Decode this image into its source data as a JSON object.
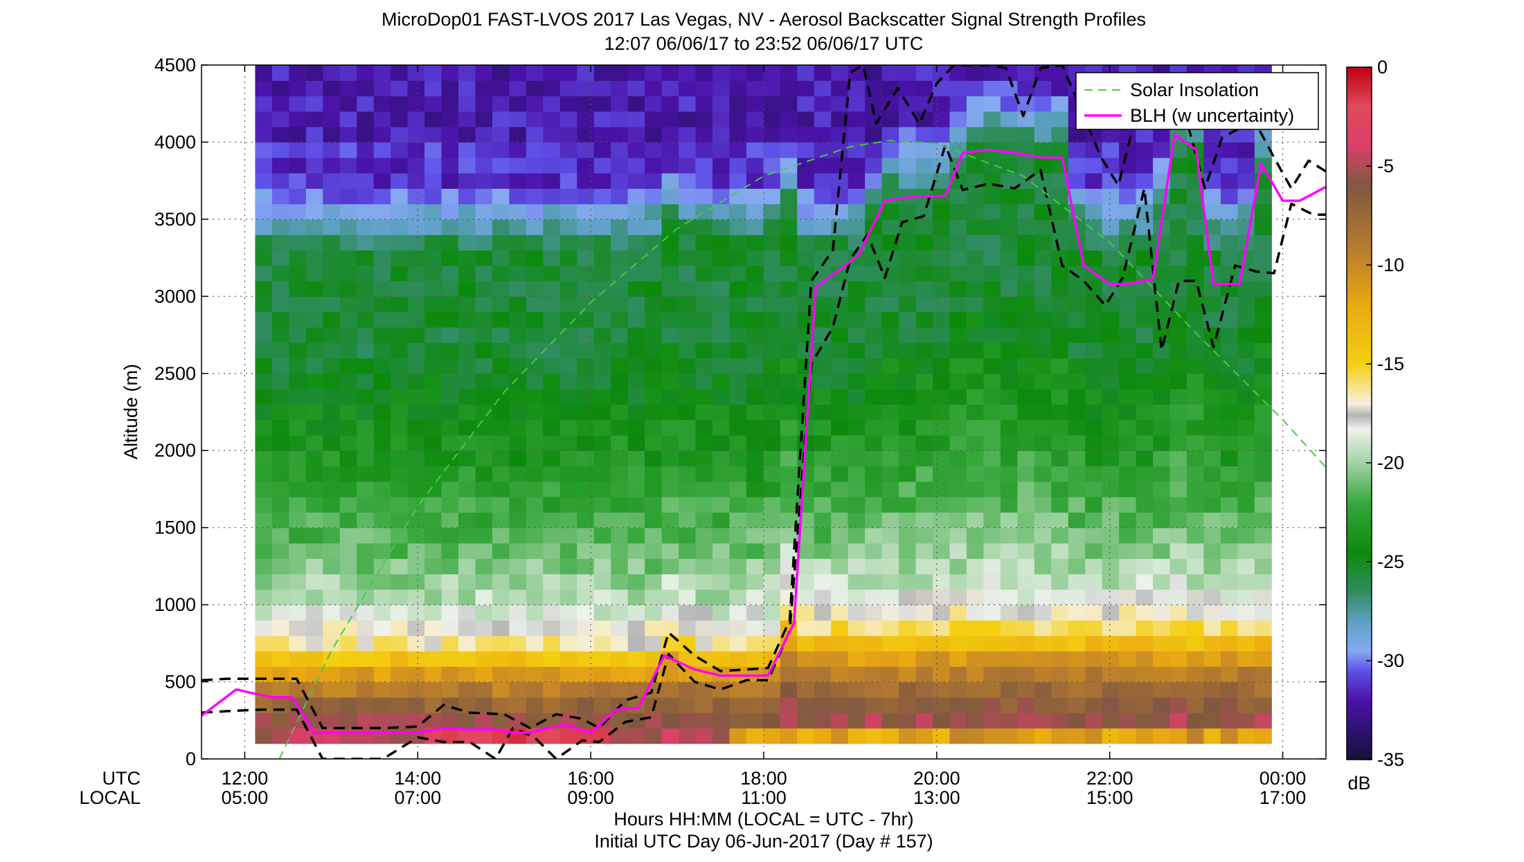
{
  "chart_data": {
    "type": "heatmap",
    "title": "MicroDop01 FAST-LVOS 2017 Las Vegas, NV - Aerosol Backscatter Signal Strength Profiles",
    "subtitle": "12:07 06/06/17 to 23:52 06/06/17  UTC",
    "ylabel": "Altitude (m)",
    "xlabel": "Hours HH:MM  (LOCAL = UTC - 7hr)",
    "footer": "Initial UTC Day 06-Jun-2017 (Day # 157)",
    "row_label_utc": "UTC",
    "row_label_local": "LOCAL",
    "colorbar_unit": "dB",
    "x_range_hours": [
      11.5,
      24.5
    ],
    "ylim": [
      0,
      4500
    ],
    "grid": true,
    "legend_position": "top-right",
    "x_ticks_utc": [
      "12:00",
      "14:00",
      "16:00",
      "18:00",
      "20:00",
      "22:00",
      "00:00"
    ],
    "x_ticks_local": [
      "05:00",
      "07:00",
      "09:00",
      "11:00",
      "13:00",
      "15:00",
      "17:00"
    ],
    "x_tick_hours": [
      12,
      14,
      16,
      18,
      20,
      22,
      24
    ],
    "y_ticks": [
      0,
      500,
      1000,
      1500,
      2000,
      2500,
      3000,
      3500,
      4000,
      4500
    ],
    "colorbar_ticks": [
      0,
      -5,
      -10,
      -15,
      -20,
      -25,
      -30,
      -35
    ],
    "colorbar_range": [
      -35,
      0
    ],
    "colormap_stops": [
      {
        "v": -35,
        "c": "#12123a"
      },
      {
        "v": -32,
        "c": "#4a12a8"
      },
      {
        "v": -30.5,
        "c": "#5f52e8"
      },
      {
        "v": -29.5,
        "c": "#86aaf2"
      },
      {
        "v": -28,
        "c": "#5ca0c2"
      },
      {
        "v": -26.5,
        "c": "#2f8c5e"
      },
      {
        "v": -24.5,
        "c": "#0c8a0c"
      },
      {
        "v": -22,
        "c": "#39a83e"
      },
      {
        "v": -20,
        "c": "#a2d3a4"
      },
      {
        "v": -18.3,
        "c": "#eef2ec"
      },
      {
        "v": -17.6,
        "c": "#b4b4b4"
      },
      {
        "v": -17,
        "c": "#f6f0de"
      },
      {
        "v": -15,
        "c": "#f4cf10"
      },
      {
        "v": -12,
        "c": "#eaa812"
      },
      {
        "v": -9,
        "c": "#b47a30"
      },
      {
        "v": -6,
        "c": "#805840"
      },
      {
        "v": -4,
        "c": "#d8406a"
      },
      {
        "v": -2,
        "c": "#e04a5a"
      },
      {
        "v": 0,
        "c": "#c00010"
      }
    ],
    "data_time_range_hours": [
      12.12,
      23.87
    ],
    "data_altitude_range_m": [
      100,
      4500
    ],
    "series": [
      {
        "name": "Solar Insolation",
        "color": "#44cc44",
        "style": "dashed",
        "hours": [
          12.4,
          13.0,
          14.0,
          15.0,
          16.0,
          17.0,
          18.0,
          19.0,
          19.45,
          20.0,
          21.0,
          22.0,
          23.0,
          24.0,
          24.5
        ],
        "values": [
          0,
          700,
          1640,
          2380,
          2960,
          3440,
          3780,
          3970,
          4010,
          3990,
          3780,
          3350,
          2760,
          2200,
          1890
        ]
      },
      {
        "name": "BLH (w uncertainty)",
        "color": "#ff00ff",
        "style": "solid",
        "hours": [
          11.5,
          11.9,
          12.3,
          12.55,
          12.8,
          13.0,
          13.4,
          13.7,
          14.0,
          14.3,
          14.6,
          14.9,
          15.1,
          15.3,
          15.5,
          15.7,
          16.0,
          16.3,
          16.55,
          16.85,
          17.2,
          17.5,
          17.8,
          18.05,
          18.35,
          18.6,
          18.85,
          19.1,
          19.4,
          19.65,
          19.85,
          20.1,
          20.3,
          20.6,
          20.9,
          21.2,
          21.45,
          21.7,
          22.0,
          22.2,
          22.5,
          22.75,
          23.0,
          23.2,
          23.5,
          23.75,
          24.0,
          24.2,
          24.5
        ],
        "values": [
          280,
          450,
          400,
          400,
          170,
          170,
          170,
          170,
          170,
          200,
          190,
          190,
          170,
          170,
          200,
          220,
          170,
          320,
          330,
          670,
          580,
          540,
          540,
          540,
          880,
          3060,
          3160,
          3270,
          3620,
          3640,
          3650,
          3650,
          3930,
          3950,
          3930,
          3900,
          3900,
          3200,
          3080,
          3080,
          3110,
          4050,
          3950,
          3080,
          3080,
          3860,
          3620,
          3620,
          3710
        ]
      },
      {
        "name": "BLH upper",
        "color": "#000000",
        "style": "dashed",
        "hours": [
          11.5,
          11.8,
          12.2,
          12.6,
          12.9,
          13.2,
          13.6,
          14.0,
          14.3,
          14.6,
          15.0,
          15.3,
          15.6,
          15.9,
          16.1,
          16.4,
          16.7,
          16.9,
          17.2,
          17.5,
          17.8,
          18.05,
          18.3,
          18.55,
          18.8,
          19.0,
          19.15,
          19.3,
          19.55,
          19.8,
          20.0,
          20.2,
          20.4,
          20.6,
          20.8,
          21.0,
          21.2,
          21.45,
          21.7,
          21.9,
          22.1,
          22.3,
          22.5,
          22.7,
          22.9,
          23.1,
          23.3,
          23.5,
          23.7,
          23.9,
          24.1,
          24.3,
          24.5
        ],
        "values": [
          510,
          520,
          520,
          520,
          200,
          200,
          200,
          210,
          350,
          300,
          290,
          200,
          290,
          260,
          200,
          380,
          430,
          820,
          670,
          570,
          580,
          590,
          900,
          3100,
          3300,
          4450,
          4500,
          4120,
          4350,
          4120,
          4380,
          4500,
          4500,
          4500,
          4480,
          4170,
          4480,
          4500,
          4170,
          3900,
          3720,
          4170,
          4090,
          4090,
          4120,
          3700,
          4030,
          4090,
          4110,
          3900,
          3700,
          3880,
          3810
        ]
      },
      {
        "name": "BLH lower",
        "color": "#000000",
        "style": "dashed",
        "hours": [
          11.5,
          11.8,
          12.2,
          12.6,
          12.9,
          13.2,
          13.6,
          14.0,
          14.3,
          14.6,
          14.9,
          15.1,
          15.35,
          15.6,
          15.9,
          16.1,
          16.4,
          16.7,
          16.9,
          17.2,
          17.5,
          17.8,
          18.05,
          18.3,
          18.55,
          18.8,
          19.0,
          19.2,
          19.4,
          19.6,
          19.85,
          20.1,
          20.3,
          20.6,
          20.9,
          21.2,
          21.45,
          21.7,
          21.95,
          22.15,
          22.4,
          22.6,
          22.8,
          23.0,
          23.2,
          23.45,
          23.7,
          23.9,
          24.1,
          24.35,
          24.5
        ],
        "values": [
          300,
          310,
          320,
          320,
          0,
          0,
          0,
          140,
          110,
          110,
          0,
          200,
          140,
          0,
          120,
          110,
          240,
          270,
          680,
          500,
          450,
          510,
          510,
          830,
          2560,
          2800,
          3240,
          3400,
          3120,
          3480,
          3520,
          3980,
          3690,
          3730,
          3700,
          3820,
          3200,
          3100,
          2940,
          3120,
          3700,
          2650,
          3100,
          3100,
          2670,
          3200,
          3160,
          3150,
          3600,
          3530,
          3530
        ]
      }
    ]
  }
}
